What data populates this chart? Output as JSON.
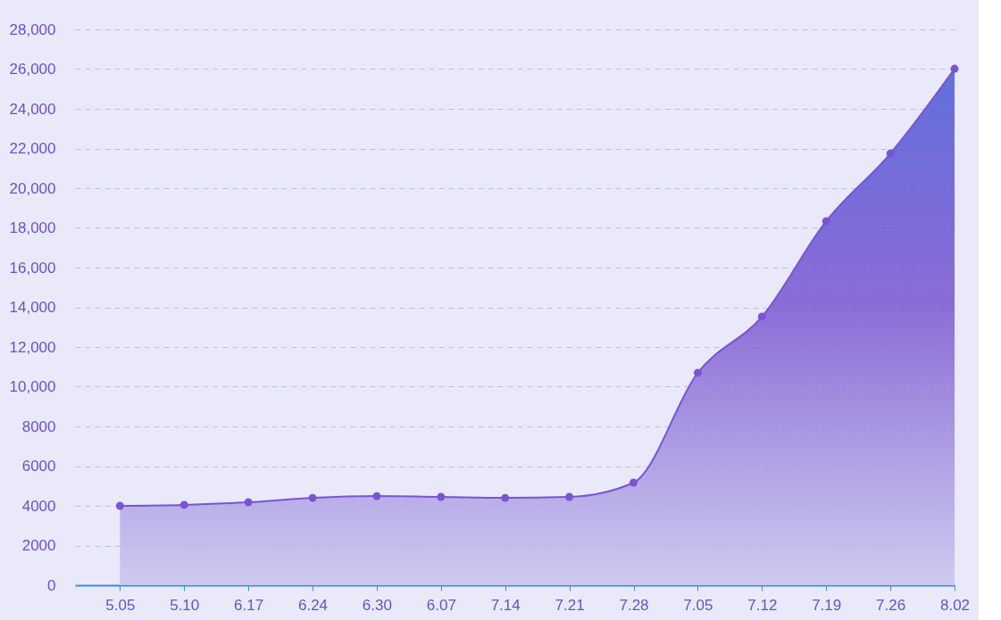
{
  "chart_data": {
    "type": "area",
    "categories": [
      "5.05",
      "5.10",
      "6.17",
      "6.24",
      "6.30",
      "6.07",
      "7.14",
      "7.21",
      "7.28",
      "7.05",
      "7.12",
      "7.19",
      "7.26",
      "8.02"
    ],
    "series": [
      {
        "color": "#7a55d0",
        "values": [
          4000,
          4050,
          4180,
          4400,
          4490,
          4450,
          4400,
          4450,
          5170,
          10700,
          13530,
          18340,
          21750,
          26020
        ]
      }
    ],
    "ylim": [
      0,
      28000
    ],
    "yticks": [
      0,
      2000,
      4000,
      6000,
      8000,
      {
        "value": 10000,
        "label": "10,000"
      },
      {
        "value": 12000,
        "label": "12,000"
      },
      {
        "value": 14000,
        "label": "14,000"
      },
      {
        "value": 16000,
        "label": "16,000"
      },
      {
        "value": 18000,
        "label": "18,000"
      },
      {
        "value": 20000,
        "label": "20,000"
      },
      {
        "value": 22000,
        "label": "22,000"
      },
      {
        "value": 24000,
        "label": "24,000"
      },
      {
        "value": 26000,
        "label": "26,000"
      },
      {
        "value": 28000,
        "label": "28,000"
      }
    ],
    "grid": "y",
    "marker": "circle",
    "line_style": "solid"
  }
}
